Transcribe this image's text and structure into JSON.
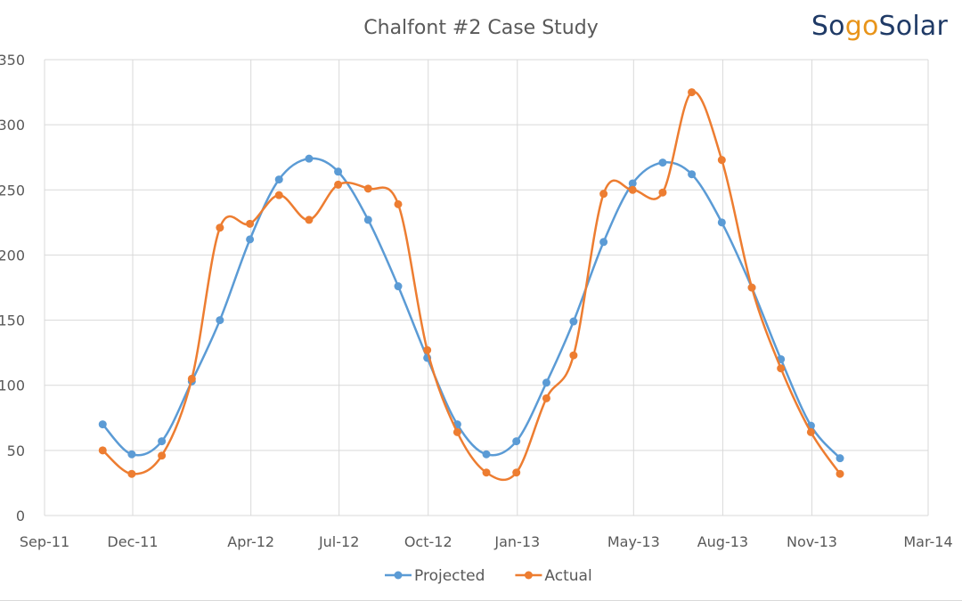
{
  "logo": {
    "part1": "So",
    "part2": "go",
    "part3": "Solar"
  },
  "colors": {
    "projected": "#5b9bd5",
    "actual": "#ed7d31",
    "grid": "#d9d9d9",
    "axis_text": "#595959",
    "title": "#595959"
  },
  "chart_data": {
    "type": "line",
    "title": "Chalfont #2 Case Study",
    "xlabel": "",
    "ylabel": "",
    "ylim": [
      0,
      350
    ],
    "yticks": [
      0,
      50,
      100,
      150,
      200,
      250,
      300,
      350
    ],
    "xlim": [
      "2011-09-01",
      "2014-03-01"
    ],
    "xticks": [
      {
        "date": "2011-09-01",
        "label": "Sep-11"
      },
      {
        "date": "2011-12-01",
        "label": "Dec-11"
      },
      {
        "date": "2012-04-01",
        "label": "Apr-12"
      },
      {
        "date": "2012-07-01",
        "label": "Jul-12"
      },
      {
        "date": "2012-10-01",
        "label": "Oct-12"
      },
      {
        "date": "2013-01-01",
        "label": "Jan-13"
      },
      {
        "date": "2013-05-01",
        "label": "May-13"
      },
      {
        "date": "2013-08-01",
        "label": "Aug-13"
      },
      {
        "date": "2013-11-01",
        "label": "Nov-13"
      },
      {
        "date": "2014-03-01",
        "label": "Mar-14"
      }
    ],
    "x": [
      "2011-10-31",
      "2011-11-30",
      "2011-12-31",
      "2012-01-31",
      "2012-02-29",
      "2012-03-31",
      "2012-04-30",
      "2012-05-31",
      "2012-06-30",
      "2012-07-31",
      "2012-08-31",
      "2012-09-30",
      "2012-10-31",
      "2012-11-30",
      "2012-12-31",
      "2013-01-31",
      "2013-02-28",
      "2013-03-31",
      "2013-04-30",
      "2013-05-31",
      "2013-06-30",
      "2013-07-31",
      "2013-08-31",
      "2013-09-30",
      "2013-10-31",
      "2013-11-30"
    ],
    "series": [
      {
        "name": "Projected",
        "values": [
          70,
          47,
          57,
          103,
          150,
          212,
          258,
          274,
          264,
          227,
          176,
          121,
          70,
          47,
          57,
          102,
          149,
          210,
          255,
          271,
          262,
          225,
          175,
          120,
          69,
          44
        ]
      },
      {
        "name": "Actual",
        "values": [
          50,
          32,
          46,
          105,
          221,
          224,
          246,
          227,
          254,
          251,
          239,
          127,
          64,
          33,
          33,
          90,
          123,
          247,
          250,
          248,
          325,
          273,
          175,
          113,
          64,
          32
        ]
      }
    ],
    "legend": [
      "Projected",
      "Actual"
    ],
    "legend_position": "bottom"
  }
}
